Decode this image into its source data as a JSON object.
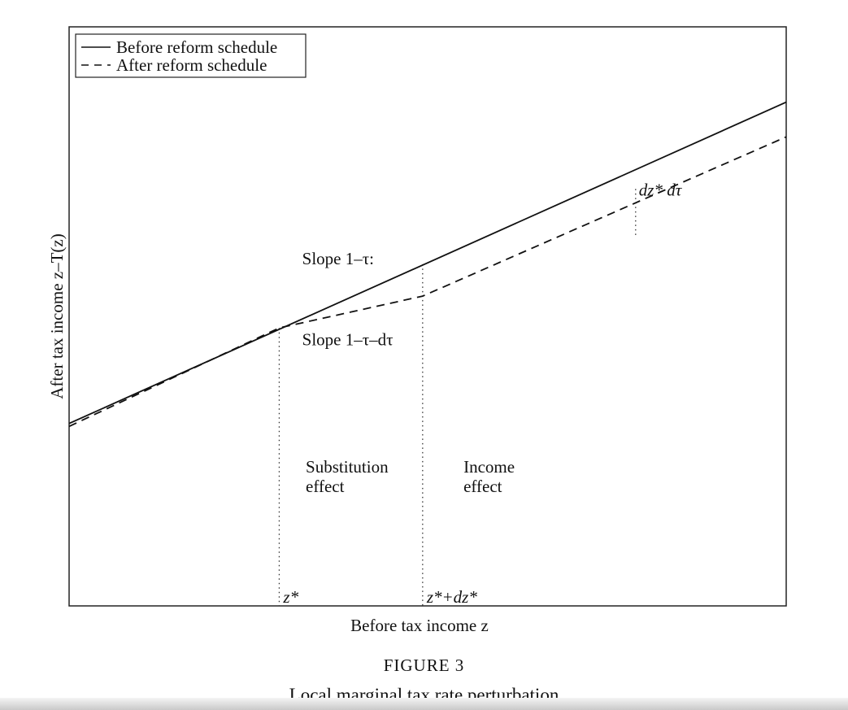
{
  "figure": {
    "label": "FIGURE 3",
    "title": "Local marginal tax rate perturbation"
  },
  "chart_data": {
    "type": "line",
    "xlabel": "Before tax income z",
    "ylabel": "After tax income z–T(z)",
    "xlim": [
      0,
      100
    ],
    "ylim": [
      0,
      100
    ],
    "grid": false,
    "legend": {
      "placement": "top-left",
      "entries": [
        {
          "label": "Before reform schedule",
          "style": "solid"
        },
        {
          "label": "After reform schedule",
          "style": "dashed"
        }
      ]
    },
    "series": [
      {
        "name": "Before reform schedule",
        "style": "solid",
        "x": [
          0,
          100
        ],
        "y": [
          31.5,
          87
        ]
      },
      {
        "name": "After reform schedule",
        "style": "dashed",
        "x": [
          0,
          29.3,
          49.3,
          100
        ],
        "y": [
          31,
          48,
          53.5,
          81
        ]
      }
    ],
    "reference_lines": [
      {
        "x": 29.3,
        "y_top": 48,
        "label": "z*"
      },
      {
        "x": 49.3,
        "y_top": 59,
        "label": "z*+dz*"
      },
      {
        "x": 79,
        "y_top": 72,
        "y_bottom": 64,
        "label": "dz* dτ"
      }
    ],
    "annotations": [
      {
        "text": "Slope 1–τ:",
        "x": 32.5,
        "y": 59
      },
      {
        "text": "Slope 1–τ–dτ",
        "x": 32.5,
        "y": 45
      },
      {
        "text": "Substitution\neffect",
        "x": 33,
        "y": 23
      },
      {
        "text": "Income\neffect",
        "x": 55,
        "y": 23
      }
    ]
  }
}
